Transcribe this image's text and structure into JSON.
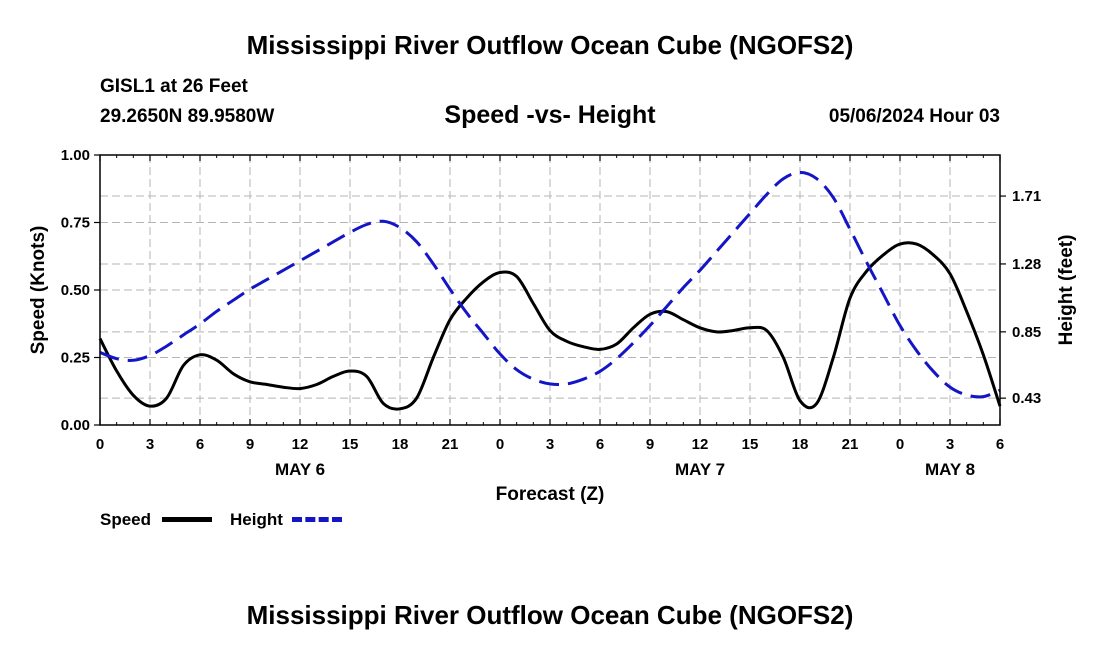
{
  "header": {
    "title": "Mississippi River Outflow Ocean Cube (NGOFS2)",
    "station": "GISL1 at 26 Feet",
    "coords": "29.2650N  89.9580W",
    "subtitle": "Speed -vs- Height",
    "datetime": "05/06/2024 Hour 03"
  },
  "footer": {
    "title": "Mississippi River Outflow Ocean Cube (NGOFS2)"
  },
  "legend": {
    "speed_label": "Speed",
    "height_label": "Height"
  },
  "colors": {
    "speed": "#000000",
    "height": "#1515c8",
    "grid": "#b4b4b4"
  },
  "chart_data": {
    "type": "line",
    "title": "Speed -vs- Height",
    "xlabel": "Forecast (Z)",
    "ylabel": "Speed (Knots)",
    "y2label": "Height (feet)",
    "xlim": [
      0,
      54
    ],
    "ylim": [
      0,
      1.0
    ],
    "y2lim": [
      0.26,
      1.97
    ],
    "x_ticks": [
      0,
      3,
      6,
      9,
      12,
      15,
      18,
      21,
      24,
      27,
      30,
      33,
      36,
      39,
      42,
      45,
      48,
      51,
      54
    ],
    "x_tick_labels": [
      "0",
      "3",
      "6",
      "9",
      "12",
      "15",
      "18",
      "21",
      "0",
      "3",
      "6",
      "9",
      "12",
      "15",
      "18",
      "21",
      "0",
      "3",
      "6"
    ],
    "y_ticks": [
      0,
      0.25,
      0.5,
      0.75,
      1.0
    ],
    "y_tick_labels": [
      "0.00",
      "0.25",
      "0.50",
      "0.75",
      "1.00"
    ],
    "y2_ticks": [
      0.43,
      0.85,
      1.28,
      1.71
    ],
    "y2_tick_labels": [
      "0.43",
      "0.85",
      "1.28",
      "1.71"
    ],
    "day_labels": [
      {
        "x": 12,
        "label": "MAY 6"
      },
      {
        "x": 36,
        "label": "MAY 7"
      },
      {
        "x": 51,
        "label": "MAY 8"
      }
    ],
    "grid": true,
    "legend_position": "bottom-left",
    "series": [
      {
        "name": "Speed",
        "axis": "left",
        "style": "solid",
        "points": [
          [
            0,
            0.32
          ],
          [
            1,
            0.2
          ],
          [
            2,
            0.11
          ],
          [
            3,
            0.07
          ],
          [
            4,
            0.1
          ],
          [
            5,
            0.22
          ],
          [
            6,
            0.26
          ],
          [
            7,
            0.24
          ],
          [
            8,
            0.19
          ],
          [
            9,
            0.16
          ],
          [
            10,
            0.15
          ],
          [
            11,
            0.14
          ],
          [
            12,
            0.135
          ],
          [
            13,
            0.15
          ],
          [
            14,
            0.18
          ],
          [
            15,
            0.2
          ],
          [
            16,
            0.18
          ],
          [
            17,
            0.08
          ],
          [
            18,
            0.06
          ],
          [
            19,
            0.1
          ],
          [
            20,
            0.25
          ],
          [
            21,
            0.39
          ],
          [
            22,
            0.47
          ],
          [
            23,
            0.53
          ],
          [
            24,
            0.565
          ],
          [
            25,
            0.55
          ],
          [
            26,
            0.45
          ],
          [
            27,
            0.35
          ],
          [
            28,
            0.31
          ],
          [
            29,
            0.29
          ],
          [
            30,
            0.28
          ],
          [
            31,
            0.3
          ],
          [
            32,
            0.36
          ],
          [
            33,
            0.41
          ],
          [
            34,
            0.42
          ],
          [
            35,
            0.39
          ],
          [
            36,
            0.36
          ],
          [
            37,
            0.345
          ],
          [
            38,
            0.35
          ],
          [
            39,
            0.36
          ],
          [
            40,
            0.35
          ],
          [
            41,
            0.25
          ],
          [
            42,
            0.09
          ],
          [
            43,
            0.08
          ],
          [
            44,
            0.25
          ],
          [
            45,
            0.47
          ],
          [
            46,
            0.57
          ],
          [
            47,
            0.63
          ],
          [
            48,
            0.67
          ],
          [
            49,
            0.67
          ],
          [
            50,
            0.63
          ],
          [
            51,
            0.56
          ],
          [
            52,
            0.42
          ],
          [
            53,
            0.26
          ],
          [
            54,
            0.07
          ]
        ]
      },
      {
        "name": "Height",
        "axis": "right",
        "style": "dashed",
        "points": [
          [
            0,
            0.72
          ],
          [
            1,
            0.68
          ],
          [
            2,
            0.67
          ],
          [
            3,
            0.7
          ],
          [
            4,
            0.76
          ],
          [
            5,
            0.83
          ],
          [
            6,
            0.9
          ],
          [
            7,
            0.98
          ],
          [
            8,
            1.05
          ],
          [
            9,
            1.12
          ],
          [
            10,
            1.18
          ],
          [
            11,
            1.24
          ],
          [
            12,
            1.3
          ],
          [
            13,
            1.36
          ],
          [
            14,
            1.42
          ],
          [
            15,
            1.48
          ],
          [
            16,
            1.53
          ],
          [
            17,
            1.55
          ],
          [
            18,
            1.51
          ],
          [
            19,
            1.42
          ],
          [
            20,
            1.28
          ],
          [
            21,
            1.12
          ],
          [
            22,
            0.97
          ],
          [
            23,
            0.84
          ],
          [
            24,
            0.71
          ],
          [
            25,
            0.61
          ],
          [
            26,
            0.55
          ],
          [
            27,
            0.52
          ],
          [
            28,
            0.52
          ],
          [
            29,
            0.55
          ],
          [
            30,
            0.6
          ],
          [
            31,
            0.68
          ],
          [
            32,
            0.78
          ],
          [
            33,
            0.89
          ],
          [
            34,
            1.01
          ],
          [
            35,
            1.13
          ],
          [
            36,
            1.24
          ],
          [
            37,
            1.36
          ],
          [
            38,
            1.48
          ],
          [
            39,
            1.6
          ],
          [
            40,
            1.72
          ],
          [
            41,
            1.82
          ],
          [
            42,
            1.86
          ],
          [
            43,
            1.82
          ],
          [
            44,
            1.7
          ],
          [
            45,
            1.5
          ],
          [
            46,
            1.29
          ],
          [
            47,
            1.09
          ],
          [
            48,
            0.89
          ],
          [
            49,
            0.73
          ],
          [
            50,
            0.6
          ],
          [
            51,
            0.5
          ],
          [
            52,
            0.45
          ],
          [
            53,
            0.44
          ],
          [
            54,
            0.48
          ]
        ]
      }
    ]
  }
}
